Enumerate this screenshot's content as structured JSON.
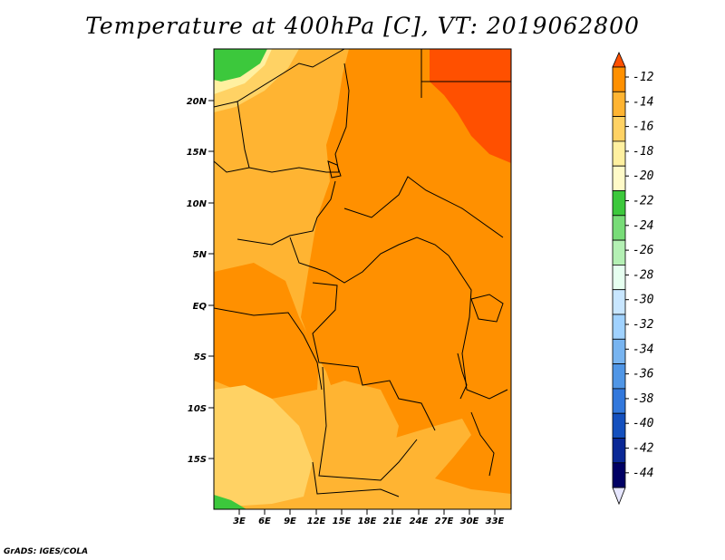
{
  "title": "Temperature at 400hPa [C], VT: 2019062800",
  "credit": "GrADS: IGES/COLA",
  "axes": {
    "lat_labels": [
      "20N",
      "15N",
      "10N",
      "5N",
      "EQ",
      "5S",
      "10S",
      "15S"
    ],
    "lon_labels": [
      "3E",
      "6E",
      "9E",
      "12E",
      "15E",
      "18E",
      "21E",
      "24E",
      "27E",
      "30E",
      "33E"
    ]
  },
  "colorbar": {
    "labels": [
      "-12",
      "-14",
      "-16",
      "-18",
      "-20",
      "-22",
      "-24",
      "-26",
      "-28",
      "-30",
      "-32",
      "-34",
      "-36",
      "-38",
      "-40",
      "-42",
      "-44"
    ],
    "colors": [
      "#ff5000",
      "#ff9000",
      "#ffb432",
      "#ffd264",
      "#fff0a0",
      "#fffac8",
      "#3cc83c",
      "#78dc78",
      "#b4f0b4",
      "#e6fff0",
      "#c8e6ff",
      "#a0d2ff",
      "#78b4f0",
      "#5096e6",
      "#3278dc",
      "#1450be",
      "#0a2896",
      "#000064",
      "#e6e6ff"
    ],
    "palette": {
      "c12": "#ff5000",
      "c14": "#ff9000",
      "c16": "#ffb432",
      "c18": "#ffd264",
      "c20": "#fff0a0",
      "c24": "#3cc83c"
    }
  }
}
